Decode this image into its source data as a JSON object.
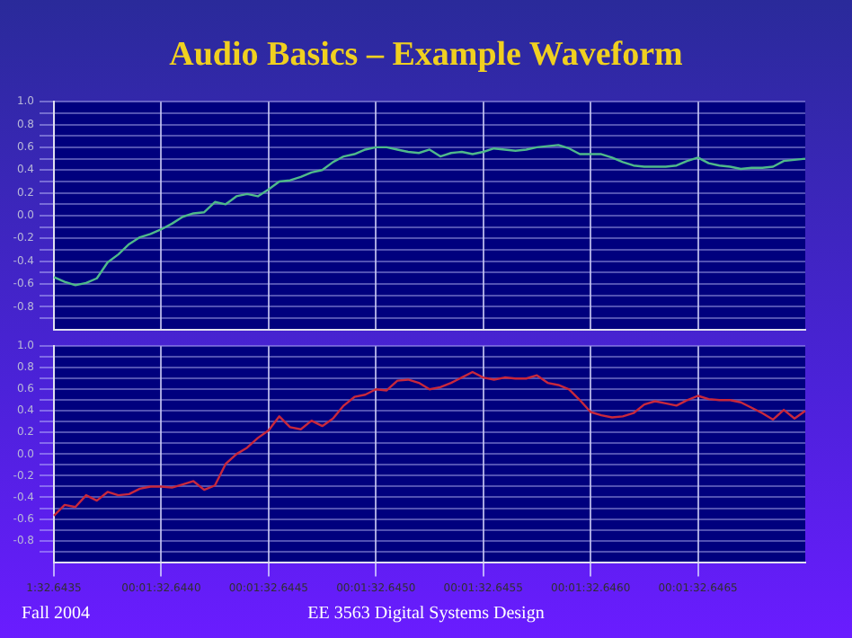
{
  "chart_data": [
    {
      "type": "line",
      "title": "Audio Basics – Example Waveform",
      "ylim": [
        -1,
        1
      ],
      "categories": [
        null,
        null,
        null,
        null,
        null,
        null,
        null,
        null,
        null,
        null,
        null,
        null,
        null,
        null,
        null,
        null,
        null,
        null,
        null,
        null,
        null,
        null,
        null,
        null,
        null,
        null,
        null,
        null,
        null,
        null,
        null,
        null,
        null,
        null,
        null,
        null,
        null,
        null,
        null,
        null,
        null,
        null,
        null,
        null,
        null,
        null,
        null,
        null,
        null,
        null,
        null,
        null,
        null,
        null,
        null,
        null,
        null,
        null,
        null,
        null,
        null,
        null,
        null,
        null,
        null,
        null,
        null,
        null,
        null,
        null,
        null
      ],
      "yticks": [
        {
          "value": -0.9,
          "label": null
        },
        {
          "value": -0.8,
          "label": "-0.8"
        },
        {
          "value": -0.7,
          "label": null
        },
        {
          "value": -0.6,
          "label": "-0.6"
        },
        {
          "value": -0.5,
          "label": null
        },
        {
          "value": -0.4,
          "label": "-0.4"
        },
        {
          "value": -0.3,
          "label": null
        },
        {
          "value": -0.2,
          "label": "-0.2"
        },
        {
          "value": -0.1,
          "label": null
        },
        {
          "value": 0,
          "label": "0.0"
        },
        {
          "value": 0.1,
          "label": null
        },
        {
          "value": 0.2,
          "label": "0.2"
        },
        {
          "value": 0.3,
          "label": null
        },
        {
          "value": 0.4,
          "label": "0.4"
        },
        {
          "value": 0.5,
          "label": null
        },
        {
          "value": 0.6,
          "label": "0.6"
        },
        {
          "value": 0.7,
          "label": null
        },
        {
          "value": 0.8,
          "label": "0.8"
        },
        {
          "value": 0.9,
          "label": null
        },
        {
          "value": 1,
          "label": "1.0"
        }
      ],
      "tick_labels": "y",
      "grid": true,
      "legend": false,
      "marker": "none",
      "series": [
        {
          "color": "#4fb98a",
          "values": [
            -0.54,
            -0.58,
            -0.61,
            -0.59,
            -0.55,
            -0.41,
            -0.34,
            -0.25,
            -0.19,
            -0.16,
            -0.12,
            -0.07,
            -0.01,
            0.02,
            0.03,
            0.12,
            0.1,
            0.17,
            0.19,
            0.17,
            0.23,
            0.3,
            0.31,
            0.34,
            0.38,
            0.4,
            0.47,
            0.52,
            0.54,
            0.58,
            0.6,
            0.6,
            0.58,
            0.56,
            0.55,
            0.58,
            0.52,
            0.55,
            0.56,
            0.54,
            0.56,
            0.59,
            0.58,
            0.57,
            0.58,
            0.6,
            0.61,
            0.62,
            0.59,
            0.54,
            0.54,
            0.54,
            0.51,
            0.47,
            0.44,
            0.43,
            0.43,
            0.43,
            0.44,
            0.48,
            0.51,
            0.46,
            0.44,
            0.43,
            0.41,
            0.42,
            0.42,
            0.43,
            0.48,
            0.49,
            0.5
          ]
        }
      ]
    },
    {
      "type": "line",
      "annotations": [
        "Fall 2004",
        "EE 3563 Digital Systems Design"
      ],
      "ylim": [
        -1,
        1
      ],
      "categories": [
        "1:32.6435",
        null,
        null,
        null,
        null,
        null,
        null,
        null,
        null,
        null,
        "00:01:32.6440",
        null,
        null,
        null,
        null,
        null,
        null,
        null,
        null,
        null,
        "00:01:32.6445",
        null,
        null,
        null,
        null,
        null,
        null,
        null,
        null,
        null,
        "00:01:32.6450",
        null,
        null,
        null,
        null,
        null,
        null,
        null,
        null,
        null,
        "00:01:32.6455",
        null,
        null,
        null,
        null,
        null,
        null,
        null,
        null,
        null,
        "00:01:32.6460",
        null,
        null,
        null,
        null,
        null,
        null,
        null,
        null,
        null,
        "00:01:32.6465",
        null,
        null,
        null,
        null,
        null,
        null,
        null,
        null,
        null,
        null
      ],
      "yticks": [
        {
          "value": -0.9,
          "label": null
        },
        {
          "value": -0.8,
          "label": "-0.8"
        },
        {
          "value": -0.7,
          "label": null
        },
        {
          "value": -0.6,
          "label": "-0.6"
        },
        {
          "value": -0.5,
          "label": null
        },
        {
          "value": -0.4,
          "label": "-0.4"
        },
        {
          "value": -0.3,
          "label": null
        },
        {
          "value": -0.2,
          "label": "-0.2"
        },
        {
          "value": -0.1,
          "label": null
        },
        {
          "value": 0,
          "label": "0.0"
        },
        {
          "value": 0.1,
          "label": null
        },
        {
          "value": 0.2,
          "label": "0.2"
        },
        {
          "value": 0.3,
          "label": null
        },
        {
          "value": 0.4,
          "label": "0.4"
        },
        {
          "value": 0.5,
          "label": null
        },
        {
          "value": 0.6,
          "label": "0.6"
        },
        {
          "value": 0.7,
          "label": null
        },
        {
          "value": 0.8,
          "label": "0.8"
        },
        {
          "value": 0.9,
          "label": null
        },
        {
          "value": 1,
          "label": "1.0"
        }
      ],
      "grid": true,
      "legend": false,
      "marker": "none",
      "series": [
        {
          "color": "#c8283c",
          "values": [
            -0.57,
            -0.47,
            -0.49,
            -0.38,
            -0.43,
            -0.35,
            -0.38,
            -0.37,
            -0.32,
            -0.3,
            -0.3,
            -0.31,
            -0.28,
            -0.25,
            -0.33,
            -0.29,
            -0.09,
            0,
            0.06,
            0.15,
            0.22,
            0.35,
            0.25,
            0.23,
            0.31,
            0.26,
            0.33,
            0.45,
            0.53,
            0.55,
            0.6,
            0.59,
            0.68,
            0.69,
            0.66,
            0.6,
            0.62,
            0.66,
            0.71,
            0.76,
            0.71,
            0.69,
            0.71,
            0.7,
            0.7,
            0.73,
            0.66,
            0.64,
            0.6,
            0.5,
            0.39,
            0.36,
            0.34,
            0.35,
            0.38,
            0.46,
            0.49,
            0.47,
            0.45,
            0.5,
            0.54,
            0.51,
            0.5,
            0.5,
            0.48,
            0.43,
            0.38,
            0.32,
            0.41,
            0.33,
            0.4
          ]
        }
      ]
    }
  ]
}
